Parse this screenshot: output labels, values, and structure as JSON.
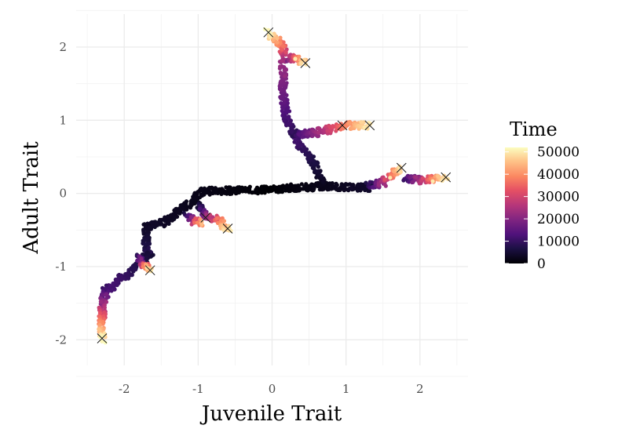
{
  "chart_data": {
    "type": "scatter",
    "title": "",
    "xlabel": "Juvenile Trait",
    "ylabel": "Adult Trait",
    "xlim": [
      -2.65,
      2.65
    ],
    "ylim": [
      -2.35,
      2.45
    ],
    "x_ticks": [
      -2,
      -1,
      0,
      1,
      2
    ],
    "y_ticks": [
      -2,
      -1,
      0,
      1,
      2
    ],
    "x_tick_labels": [
      "-2",
      "-1",
      "0",
      "1",
      "2"
    ],
    "y_tick_labels": [
      "-2",
      "-1",
      "0",
      "1",
      "2"
    ],
    "grid": true,
    "color_scale": {
      "name": "Time",
      "palette": "magma",
      "min": 0,
      "max": 52000,
      "ticks": [
        0,
        10000,
        20000,
        30000,
        40000,
        50000
      ],
      "tick_labels": [
        "0",
        "10000",
        "20000",
        "30000",
        "40000",
        "50000"
      ]
    },
    "legend_position": "right",
    "paths": [
      {
        "t": [
          0,
          4000
        ],
        "points": [
          [
            -0.05,
            0.05
          ],
          [
            0.35,
            0.08
          ],
          [
            0.75,
            0.1
          ],
          [
            1.05,
            0.08
          ],
          [
            1.3,
            0.08
          ]
        ]
      },
      {
        "t": [
          0,
          4000
        ],
        "points": [
          [
            -0.05,
            0.05
          ],
          [
            -0.95,
            0.03
          ],
          [
            -1.05,
            -0.08
          ],
          [
            -1.45,
            -0.4
          ],
          [
            -1.7,
            -0.45
          ]
        ]
      },
      {
        "t": [
          3000,
          8000
        ],
        "points": [
          [
            -1.7,
            -0.45
          ],
          [
            -1.7,
            -0.75
          ],
          [
            -1.65,
            -0.82
          ]
        ]
      },
      {
        "t": [
          5000,
          12000
        ],
        "points": [
          [
            -1.65,
            -0.82
          ],
          [
            -1.95,
            -1.1
          ],
          [
            -2.1,
            -1.2
          ],
          [
            -2.2,
            -1.3
          ]
        ]
      },
      {
        "t": [
          10000,
          52000
        ],
        "points": [
          [
            -2.25,
            -1.3
          ],
          [
            -2.3,
            -1.6
          ],
          [
            -2.3,
            -1.9
          ],
          [
            -2.3,
            -2.0
          ]
        ]
      },
      {
        "t": [
          6000,
          50000
        ],
        "points": [
          [
            -1.8,
            -0.85
          ],
          [
            -1.75,
            -0.95
          ],
          [
            -1.65,
            -1.05
          ]
        ]
      },
      {
        "t": [
          4000,
          50000
        ],
        "points": [
          [
            -1.0,
            -0.15
          ],
          [
            -0.9,
            -0.3
          ],
          [
            -0.75,
            -0.35
          ],
          [
            -0.6,
            -0.48
          ]
        ]
      },
      {
        "t": [
          6000,
          45000
        ],
        "points": [
          [
            -1.15,
            -0.3
          ],
          [
            -1.05,
            -0.38
          ],
          [
            -0.95,
            -0.4
          ]
        ]
      },
      {
        "t": [
          2000,
          12000
        ],
        "points": [
          [
            0.7,
            0.1
          ],
          [
            0.55,
            0.45
          ],
          [
            0.4,
            0.6
          ],
          [
            0.3,
            0.8
          ]
        ]
      },
      {
        "t": [
          8000,
          22000
        ],
        "points": [
          [
            0.3,
            0.8
          ],
          [
            0.2,
            1.0
          ],
          [
            0.15,
            1.35
          ],
          [
            0.15,
            1.6
          ],
          [
            0.15,
            1.75
          ]
        ]
      },
      {
        "t": [
          20000,
          52000
        ],
        "points": [
          [
            0.15,
            1.8
          ],
          [
            0.15,
            2.0
          ],
          [
            0.0,
            2.15
          ],
          [
            -0.05,
            2.2
          ]
        ]
      },
      {
        "t": [
          18000,
          50000
        ],
        "points": [
          [
            0.2,
            1.85
          ],
          [
            0.35,
            1.85
          ],
          [
            0.45,
            1.78
          ]
        ]
      },
      {
        "t": [
          10000,
          50000
        ],
        "points": [
          [
            0.3,
            0.8
          ],
          [
            0.6,
            0.83
          ],
          [
            0.8,
            0.88
          ],
          [
            1.0,
            0.93
          ],
          [
            1.3,
            0.93
          ]
        ]
      },
      {
        "t": [
          6000,
          50000
        ],
        "points": [
          [
            1.3,
            0.1
          ],
          [
            1.5,
            0.15
          ],
          [
            1.6,
            0.25
          ],
          [
            1.75,
            0.35
          ]
        ]
      },
      {
        "t": [
          10000,
          50000
        ],
        "points": [
          [
            1.8,
            0.2
          ],
          [
            2.0,
            0.18
          ],
          [
            2.2,
            0.2
          ],
          [
            2.35,
            0.22
          ]
        ]
      }
    ],
    "endpoints": [
      [
        -0.05,
        2.2
      ],
      [
        0.45,
        1.78
      ],
      [
        0.95,
        0.93
      ],
      [
        1.32,
        0.93
      ],
      [
        1.75,
        0.35
      ],
      [
        2.35,
        0.22
      ],
      [
        -0.6,
        -0.48
      ],
      [
        -0.9,
        -0.33
      ],
      [
        -1.65,
        -1.05
      ],
      [
        -2.3,
        -1.98
      ]
    ]
  }
}
